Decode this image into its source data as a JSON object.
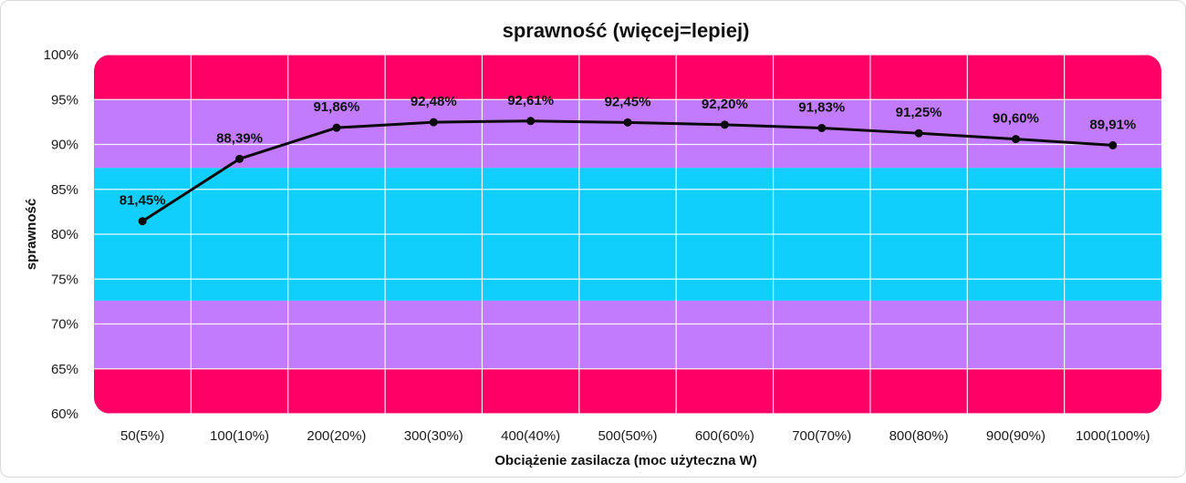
{
  "chart_data": {
    "type": "line",
    "title": "sprawność (więcej=lepiej)",
    "xlabel": "Obciążenie zasilacza (moc użyteczna W)",
    "ylabel": "sprawność",
    "ylim": [
      60,
      100
    ],
    "yticks": [
      "60%",
      "65%",
      "70%",
      "75%",
      "80%",
      "85%",
      "90%",
      "95%",
      "100%"
    ],
    "categories": [
      "50(5%)",
      "100(10%)",
      "200(20%)",
      "300(30%)",
      "400(40%)",
      "500(50%)",
      "600(60%)",
      "700(70%)",
      "800(80%)",
      "900(90%)",
      "1000(100%)"
    ],
    "values": [
      81.45,
      88.39,
      91.86,
      92.48,
      92.61,
      92.45,
      92.2,
      91.83,
      91.25,
      90.6,
      89.91
    ],
    "value_labels": [
      "81,45%",
      "88,39%",
      "91,86%",
      "92,48%",
      "92,61%",
      "92,45%",
      "92,20%",
      "91,83%",
      "91,25%",
      "90,60%",
      "89,91%"
    ],
    "grid": true,
    "background_bands": [
      {
        "from": 60,
        "to": 65,
        "color": "#ff0066"
      },
      {
        "from": 65,
        "to": 72.6,
        "color": "#c17bfc"
      },
      {
        "from": 72.6,
        "to": 87.4,
        "color": "#11cffc"
      },
      {
        "from": 87.4,
        "to": 95,
        "color": "#c17bfc"
      },
      {
        "from": 95,
        "to": 100,
        "color": "#ff0066"
      }
    ],
    "line_color": "#0a0a0a"
  }
}
